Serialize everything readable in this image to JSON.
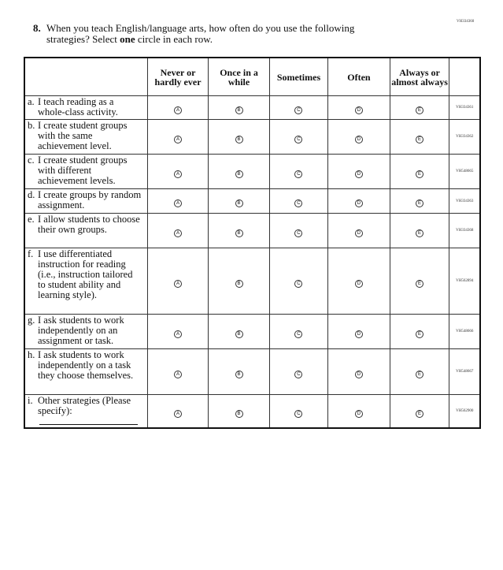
{
  "question_code": "VH334360",
  "question": {
    "number": "8.",
    "text_before": "When you teach English/language arts, how often do you use the following strategies? Select ",
    "bold": "one",
    "text_after": " circle in each row."
  },
  "columns": [
    "Never or hardly ever",
    "Once in a while",
    "Sometimes",
    "Often",
    "Always or almost always"
  ],
  "bubble_letters": [
    "A",
    "B",
    "C",
    "D",
    "E"
  ],
  "rows": [
    {
      "letter": "a.",
      "text": "I teach reading as a whole-class activity.",
      "code": "VH334361",
      "h": 30
    },
    {
      "letter": "b.",
      "text": "I create student groups with the same achievement level.",
      "code": "VH334362",
      "h": 44
    },
    {
      "letter": "c.",
      "text": "I create student groups with different achievement levels.",
      "code": "VH548665",
      "h": 44
    },
    {
      "letter": "d.",
      "text": "I create groups by random assignment.",
      "code": "VH334363",
      "h": 31
    },
    {
      "letter": "e.",
      "text": "I allow students to choose their own groups.",
      "code": "VH334368",
      "h": 44
    },
    {
      "letter": "f.",
      "text": "I use differentiated instruction for reading (i.e., instruction tailored to student ability and learning style).",
      "code": "VH562894",
      "h": 84
    },
    {
      "letter": "g.",
      "text": "I ask students to work independently on an assignment or task.",
      "code": "VH548666",
      "h": 44
    },
    {
      "letter": "h.",
      "text": "I ask students to work independently on a task they choose themselves.",
      "code": "VH548667",
      "h": 58
    },
    {
      "letter": "i.",
      "text": "Other strategies (Please specify):",
      "code": "VH562900",
      "h": 41,
      "specify": true
    }
  ]
}
